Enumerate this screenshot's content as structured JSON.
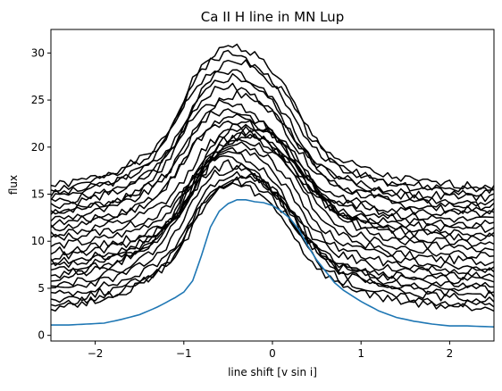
{
  "chart_data": {
    "type": "line",
    "title": "Ca II H line in MN Lup",
    "xlabel": "line shift [v sin i]",
    "ylabel": "flux",
    "xlim": [
      -2.5,
      2.5
    ],
    "ylim": [
      -0.6,
      32.5
    ],
    "xticks": [
      -2,
      -1,
      0,
      1,
      2
    ],
    "xtick_labels": [
      "−2",
      "−1",
      "0",
      "1",
      "2"
    ],
    "yticks": [
      0,
      5,
      10,
      15,
      20,
      25,
      30
    ],
    "ytick_labels": [
      "0",
      "5",
      "10",
      "15",
      "20",
      "25",
      "30"
    ],
    "grid": false,
    "legend": "none",
    "colors": {
      "spectra": "#000000",
      "mean": "#1f77b4"
    },
    "line_shape": {
      "x": [
        -2.5,
        -2.0,
        -1.5,
        -1.2,
        -1.0,
        -0.8,
        -0.6,
        -0.4,
        -0.2,
        0.0,
        0.2,
        0.4,
        0.6,
        0.8,
        1.0,
        1.5,
        2.0,
        2.5
      ],
      "profile": [
        0.0,
        0.04,
        0.12,
        0.22,
        0.32,
        0.52,
        0.8,
        0.95,
        1.0,
        0.96,
        0.86,
        0.7,
        0.46,
        0.3,
        0.2,
        0.09,
        0.04,
        0.02
      ]
    },
    "spectra": [
      {
        "base": 15.6,
        "peak": 30.8,
        "center": -0.25
      },
      {
        "base": 15.2,
        "peak": 30.0,
        "center": -0.3
      },
      {
        "base": 14.8,
        "peak": 29.2,
        "center": -0.2
      },
      {
        "base": 14.4,
        "peak": 28.3,
        "center": -0.35
      },
      {
        "base": 13.9,
        "peak": 27.5,
        "center": -0.25
      },
      {
        "base": 13.5,
        "peak": 26.5,
        "center": -0.3
      },
      {
        "base": 13.0,
        "peak": 25.6,
        "center": -0.2
      },
      {
        "base": 12.6,
        "peak": 24.8,
        "center": -0.35
      },
      {
        "base": 12.1,
        "peak": 24.0,
        "center": -0.3
      },
      {
        "base": 11.6,
        "peak": 23.2,
        "center": -0.25
      },
      {
        "base": 11.1,
        "peak": 22.5,
        "center": -0.3
      },
      {
        "base": 10.6,
        "peak": 21.8,
        "center": -0.2
      },
      {
        "base": 10.2,
        "peak": 21.2,
        "center": -0.15
      },
      {
        "base": 9.4,
        "peak": 22.5,
        "center": -0.1
      },
      {
        "base": 8.8,
        "peak": 22.0,
        "center": -0.05
      },
      {
        "base": 8.2,
        "peak": 21.4,
        "center": -0.1
      },
      {
        "base": 7.6,
        "peak": 20.8,
        "center": -0.15
      },
      {
        "base": 7.1,
        "peak": 20.3,
        "center": -0.2
      },
      {
        "base": 6.6,
        "peak": 19.8,
        "center": -0.25
      },
      {
        "base": 6.1,
        "peak": 19.3,
        "center": -0.3
      },
      {
        "base": 5.6,
        "peak": 18.8,
        "center": -0.35
      },
      {
        "base": 5.1,
        "peak": 18.2,
        "center": -0.3
      },
      {
        "base": 4.6,
        "peak": 17.8,
        "center": -0.25
      },
      {
        "base": 4.1,
        "peak": 17.3,
        "center": -0.2
      },
      {
        "base": 3.6,
        "peak": 16.9,
        "center": -0.15
      },
      {
        "base": 3.1,
        "peak": 16.4,
        "center": -0.2
      },
      {
        "base": 2.7,
        "peak": 16.0,
        "center": -0.25
      }
    ],
    "mean_spectrum": {
      "x": [
        -2.5,
        -2.3,
        -2.1,
        -1.9,
        -1.7,
        -1.5,
        -1.3,
        -1.1,
        -1.0,
        -0.9,
        -0.8,
        -0.7,
        -0.6,
        -0.5,
        -0.4,
        -0.3,
        -0.2,
        -0.1,
        0.0,
        0.1,
        0.2,
        0.3,
        0.4,
        0.5,
        0.6,
        0.7,
        0.8,
        0.9,
        1.0,
        1.2,
        1.4,
        1.6,
        1.8,
        2.0,
        2.2,
        2.5
      ],
      "y": [
        1.1,
        1.1,
        1.2,
        1.3,
        1.7,
        2.2,
        3.0,
        4.0,
        4.6,
        5.8,
        8.5,
        11.5,
        13.2,
        14.0,
        14.4,
        14.4,
        14.2,
        14.1,
        13.8,
        13.2,
        12.4,
        11.2,
        9.5,
        8.0,
        6.8,
        5.6,
        4.8,
        4.2,
        3.6,
        2.6,
        1.9,
        1.5,
        1.2,
        1.0,
        1.0,
        0.9
      ]
    }
  }
}
